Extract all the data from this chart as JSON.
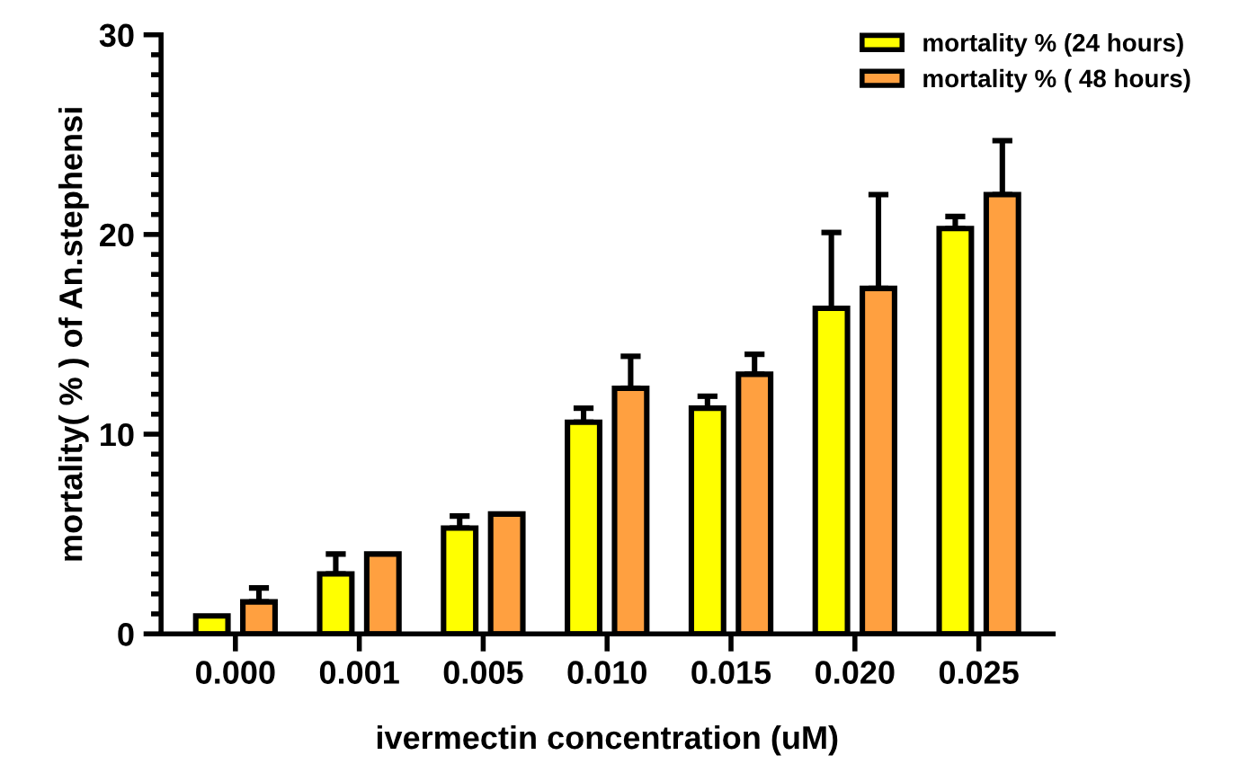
{
  "chart_data": {
    "type": "bar",
    "xlabel": "ivermectin concentration (uM)",
    "ylabel": "mortality( % ) of An.stephensi",
    "categories": [
      "0.000",
      "0.001",
      "0.005",
      "0.010",
      "0.015",
      "0.020",
      "0.025"
    ],
    "series": [
      {
        "name": "mortality % (24 hours)",
        "color": "#ffff00",
        "values": [
          0.9,
          3.0,
          5.3,
          10.6,
          11.3,
          16.3,
          20.3
        ],
        "errors": [
          null,
          [
            3.0,
            4.0
          ],
          [
            5.3,
            5.9
          ],
          [
            10.6,
            11.3
          ],
          [
            11.3,
            11.9
          ],
          [
            16.3,
            20.1
          ],
          [
            20.3,
            20.9
          ]
        ]
      },
      {
        "name": "mortality % ( 48 hours)",
        "color": "#ffa040",
        "values": [
          1.6,
          4.0,
          6.0,
          12.3,
          13.0,
          17.3,
          22.0
        ],
        "errors": [
          [
            1.6,
            2.3
          ],
          null,
          null,
          [
            12.3,
            13.9
          ],
          [
            13.0,
            14.0
          ],
          [
            17.3,
            22.0
          ],
          [
            22.0,
            24.7
          ]
        ]
      }
    ],
    "ylim": [
      0,
      30
    ],
    "yticks": [
      0,
      10,
      20,
      30
    ],
    "grid": false,
    "legend": "top right"
  }
}
